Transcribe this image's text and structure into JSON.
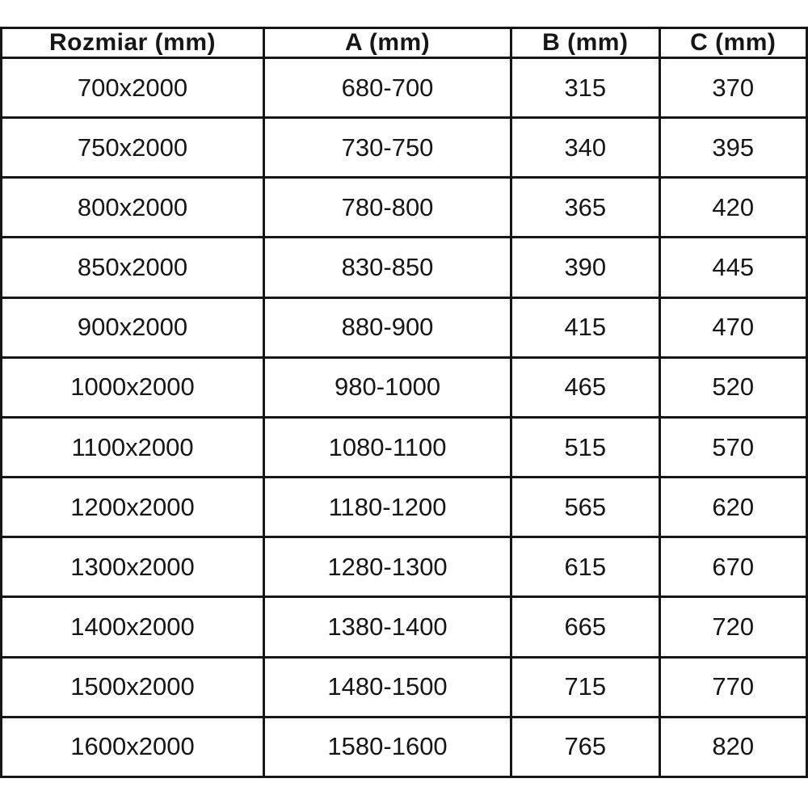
{
  "table": {
    "headers": [
      "Rozmiar (mm)",
      "A (mm)",
      "B (mm)",
      "C (mm)"
    ],
    "rows": [
      [
        "700x2000",
        "680-700",
        "315",
        "370"
      ],
      [
        "750x2000",
        "730-750",
        "340",
        "395"
      ],
      [
        "800x2000",
        "780-800",
        "365",
        "420"
      ],
      [
        "850x2000",
        "830-850",
        "390",
        "445"
      ],
      [
        "900x2000",
        "880-900",
        "415",
        "470"
      ],
      [
        "1000x2000",
        "980-1000",
        "465",
        "520"
      ],
      [
        "1100x2000",
        "1080-1100",
        "515",
        "570"
      ],
      [
        "1200x2000",
        "1180-1200",
        "565",
        "620"
      ],
      [
        "1300x2000",
        "1280-1300",
        "615",
        "670"
      ],
      [
        "1400x2000",
        "1380-1400",
        "665",
        "720"
      ],
      [
        "1500x2000",
        "1480-1500",
        "715",
        "770"
      ],
      [
        "1600x2000",
        "1580-1600",
        "765",
        "820"
      ]
    ]
  },
  "colors": {
    "border": "#161616",
    "text": "#161616",
    "background": "#ffffff"
  }
}
